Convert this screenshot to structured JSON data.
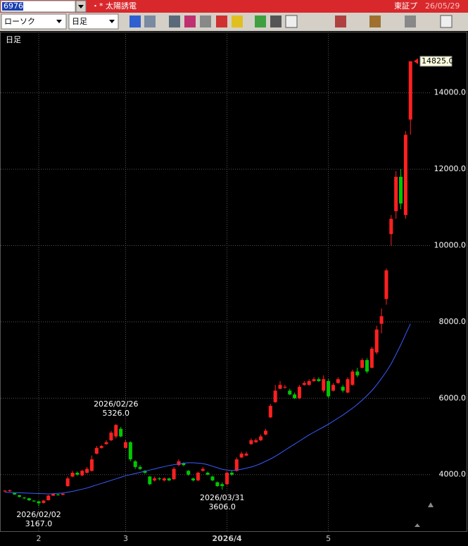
{
  "header": {
    "code": "6976",
    "name": "・* 太陽誘電",
    "market": "東証プ",
    "date": "26/05/29"
  },
  "toolbar": {
    "chart_style": "ローソク",
    "period": "日足"
  },
  "chart_data": {
    "type": "candlestick",
    "label": "日足",
    "categories": [
      null,
      null,
      null,
      null,
      null,
      null,
      null,
      "2",
      null,
      null,
      null,
      null,
      null,
      null,
      null,
      null,
      null,
      null,
      null,
      null,
      null,
      null,
      null,
      null,
      null,
      "3",
      null,
      null,
      null,
      null,
      null,
      null,
      null,
      null,
      null,
      null,
      null,
      null,
      null,
      null,
      null,
      null,
      null,
      null,
      null,
      null,
      "2026/4",
      null,
      null,
      null,
      null,
      null,
      null,
      null,
      null,
      null,
      null,
      null,
      null,
      null,
      null,
      null,
      null,
      null,
      null,
      null,
      null,
      "5",
      null,
      null,
      null,
      null,
      null,
      null,
      null,
      null,
      null,
      null,
      null,
      null,
      null,
      null,
      null,
      null,
      null
    ],
    "open": [
      3560,
      3570,
      3520,
      3460,
      3400,
      3380,
      3320,
      3300,
      3260,
      3330,
      3450,
      3480,
      3470,
      3700,
      3950,
      4050,
      3980,
      4050,
      4100,
      4550,
      4700,
      4800,
      4900,
      5000,
      5200,
      4700,
      4850,
      4350,
      4200,
      4100,
      3950,
      3850,
      3900,
      3850,
      3900,
      3880,
      4250,
      4300,
      4100,
      3900,
      3850,
      4100,
      4050,
      3950,
      3800,
      3750,
      3750,
      4050,
      4100,
      4450,
      4500,
      4800,
      4850,
      4900,
      5050,
      5500,
      5900,
      6250,
      6280,
      6200,
      6100,
      6000,
      6350,
      6350,
      6450,
      6500,
      6200,
      6450,
      6200,
      6400,
      6300,
      6150,
      6350,
      6700,
      6800,
      7000,
      6800,
      7200,
      7950,
      8600,
      10300,
      10900,
      11800,
      10800,
      13300
    ],
    "high": [
      3600,
      3610,
      3530,
      3470,
      3410,
      3390,
      3330,
      3320,
      3340,
      3470,
      3520,
      3500,
      3520,
      3950,
      4100,
      4080,
      4130,
      4200,
      4500,
      4750,
      4780,
      4900,
      5150,
      5326,
      5250,
      4900,
      4870,
      4380,
      4250,
      4120,
      3970,
      3950,
      3930,
      3930,
      3920,
      4200,
      4400,
      4320,
      4120,
      3920,
      4080,
      4200,
      4080,
      3970,
      3820,
      3800,
      4080,
      4100,
      4450,
      4600,
      4600,
      4950,
      4950,
      5050,
      5200,
      5850,
      6350,
      6450,
      6350,
      6250,
      6150,
      6350,
      6450,
      6500,
      6550,
      6550,
      6600,
      6500,
      6400,
      6550,
      6350,
      6550,
      6750,
      6800,
      7050,
      7050,
      7350,
      7900,
      8350,
      9400,
      10800,
      11950,
      12000,
      13000,
      14825
    ],
    "low": [
      3540,
      3550,
      3470,
      3400,
      3360,
      3310,
      3280,
      3167,
      3240,
      3320,
      3440,
      3450,
      3460,
      3680,
      3930,
      3970,
      3960,
      4030,
      4080,
      4530,
      4680,
      4780,
      4880,
      4950,
      4980,
      4680,
      4350,
      4150,
      4120,
      4020,
      3720,
      3820,
      3850,
      3820,
      3830,
      3860,
      4220,
      4220,
      3970,
      3820,
      3830,
      4080,
      3980,
      3830,
      3680,
      3606,
      3720,
      3970,
      4080,
      4430,
      4480,
      4780,
      4830,
      4880,
      5030,
      5480,
      5880,
      6230,
      6250,
      6080,
      5980,
      5980,
      6330,
      6330,
      6430,
      6430,
      6150,
      6000,
      6180,
      6380,
      6150,
      6130,
      6330,
      6550,
      6780,
      6650,
      6780,
      7150,
      7700,
      8450,
      10000,
      10700,
      10950,
      10700,
      12900
    ],
    "close": [
      3580,
      3590,
      3480,
      3420,
      3380,
      3330,
      3300,
      3250,
      3320,
      3450,
      3500,
      3470,
      3500,
      3900,
      4050,
      4000,
      4100,
      4150,
      4400,
      4700,
      4750,
      4850,
      5100,
      5300,
      5000,
      4850,
      4400,
      4200,
      4150,
      4050,
      3750,
      3900,
      3880,
      3900,
      3850,
      4150,
      4350,
      4250,
      4000,
      3850,
      4050,
      4150,
      4000,
      3850,
      3700,
      3700,
      4050,
      4000,
      4400,
      4550,
      4550,
      4900,
      4900,
      5000,
      5150,
      5800,
      6200,
      6350,
      6300,
      6100,
      6000,
      6300,
      6400,
      6450,
      6500,
      6450,
      6500,
      6050,
      6350,
      6500,
      6200,
      6500,
      6700,
      6600,
      7000,
      6700,
      7300,
      7800,
      8150,
      9350,
      10700,
      11800,
      11100,
      12900,
      14825
    ],
    "up_color": "#ff2020",
    "down_color": "#00c800",
    "ma": {
      "color": "#3a5cff",
      "values": [
        3540,
        3535,
        3530,
        3525,
        3520,
        3515,
        3510,
        3505,
        3500,
        3495,
        3500,
        3510,
        3520,
        3540,
        3560,
        3590,
        3620,
        3650,
        3690,
        3730,
        3770,
        3810,
        3850,
        3890,
        3930,
        3970,
        4000,
        4030,
        4060,
        4090,
        4120,
        4150,
        4180,
        4210,
        4240,
        4260,
        4280,
        4300,
        4310,
        4310,
        4300,
        4290,
        4260,
        4220,
        4180,
        4140,
        4120,
        4110,
        4120,
        4140,
        4170,
        4200,
        4240,
        4290,
        4350,
        4410,
        4480,
        4560,
        4640,
        4720,
        4800,
        4880,
        4960,
        5040,
        5110,
        5180,
        5250,
        5320,
        5400,
        5480,
        5560,
        5650,
        5740,
        5840,
        5950,
        6070,
        6200,
        6350,
        6520,
        6700,
        6900,
        7150,
        7400,
        7680,
        7950
      ]
    },
    "ylim": [
      2500,
      15600
    ],
    "yticks": [
      {
        "value": 4000,
        "label": "4000.0"
      },
      {
        "value": 6000,
        "label": "6000.0"
      },
      {
        "value": 8000,
        "label": "8000.0"
      },
      {
        "value": 10000,
        "label": "10000.0"
      },
      {
        "value": 12000,
        "label": "12000.0"
      },
      {
        "value": 14000,
        "label": "14000.0"
      }
    ],
    "grid": true,
    "annotations": [
      {
        "date": "2026/02/02",
        "value": 3167,
        "value_label": "3167.0",
        "anchor": "low"
      },
      {
        "date": "2026/02/26",
        "value": 5326,
        "value_label": "5326.0",
        "anchor": "high"
      },
      {
        "date": "2026/03/31",
        "value": 3606,
        "value_label": "3606.0",
        "anchor": "low"
      }
    ],
    "last_price": {
      "value": 14825,
      "label": "14825.0"
    }
  }
}
